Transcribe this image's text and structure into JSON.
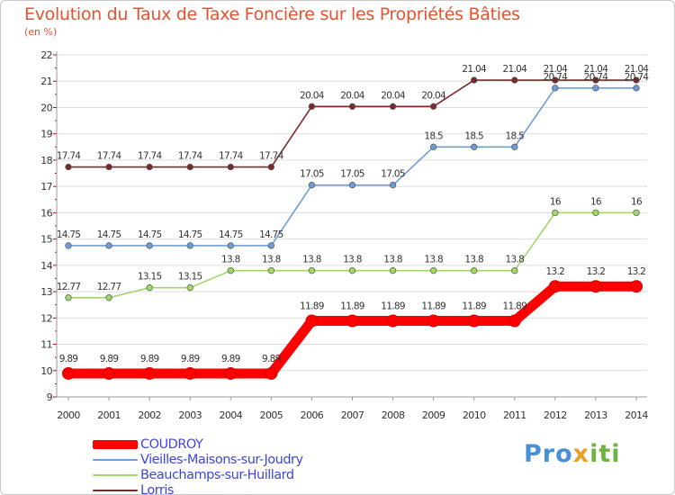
{
  "chart_data": {
    "type": "line",
    "title": "Evolution du Taux de Taxe Foncière sur les Propriétés Bâties",
    "subtitle": "(en %)",
    "x": [
      "2000",
      "2001",
      "2002",
      "2003",
      "2004",
      "2005",
      "2006",
      "2007",
      "2008",
      "2009",
      "2010",
      "2011",
      "2012",
      "2013",
      "2014"
    ],
    "yticks": [
      9,
      10,
      11,
      12,
      13,
      14,
      15,
      16,
      17,
      18,
      19,
      20,
      21,
      22
    ],
    "ylim": [
      9,
      22
    ],
    "grid": "horizontal",
    "legend_position": "bottom-left",
    "series": [
      {
        "name": "COUDROY",
        "color": "#ff0000",
        "values": [
          9.89,
          9.89,
          9.89,
          9.89,
          9.89,
          9.89,
          11.89,
          11.89,
          11.89,
          11.89,
          11.89,
          11.89,
          13.2,
          13.2,
          13.2
        ],
        "labels": [
          "9.89",
          "9.89",
          "9.89",
          "9.89",
          "9.89",
          "9.89",
          "11.89",
          "11.89",
          "11.89",
          "11.89",
          "11.89",
          "11.89",
          "13.2",
          "13.2",
          "13.2"
        ]
      },
      {
        "name": "Vieilles-Maisons-sur-Joudry",
        "color": "#6b9dd8",
        "values": [
          14.75,
          14.75,
          14.75,
          14.75,
          14.75,
          14.75,
          17.05,
          17.05,
          17.05,
          18.5,
          18.5,
          18.5,
          20.74,
          20.74,
          20.74
        ],
        "labels": [
          "14.75",
          "14.75",
          "14.75",
          "14.75",
          "14.75",
          "14.75",
          "17.05",
          "17.05",
          "17.05",
          "18.5",
          "18.5",
          "18.5",
          "20.74",
          "20.74",
          "20.74"
        ]
      },
      {
        "name": "Beauchamps-sur-Huillard",
        "color": "#9fd86b",
        "values": [
          12.77,
          12.77,
          13.15,
          13.15,
          13.8,
          13.8,
          13.8,
          13.8,
          13.8,
          13.8,
          13.8,
          13.8,
          16,
          16,
          16
        ],
        "labels": [
          "12.77",
          "12.77",
          "13.15",
          "13.15",
          "13.8",
          "13.8",
          "13.8",
          "13.8",
          "13.8",
          "13.8",
          "13.8",
          "13.8",
          "16",
          "16",
          "16"
        ]
      },
      {
        "name": "Lorris",
        "color": "#7a2a2a",
        "values": [
          17.74,
          17.74,
          17.74,
          17.74,
          17.74,
          17.74,
          20.04,
          20.04,
          20.04,
          20.04,
          21.04,
          21.04,
          21.04,
          21.04,
          21.04
        ],
        "labels": [
          "17.74",
          "17.74",
          "17.74",
          "17.74",
          "17.74",
          "17.74",
          "20.04",
          "20.04",
          "20.04",
          "20.04",
          "21.04",
          "21.04",
          "21.04",
          "21.04",
          "21.04"
        ]
      }
    ]
  },
  "logo": {
    "part1": "Pro",
    "part2": "x",
    "part3": "iti"
  }
}
